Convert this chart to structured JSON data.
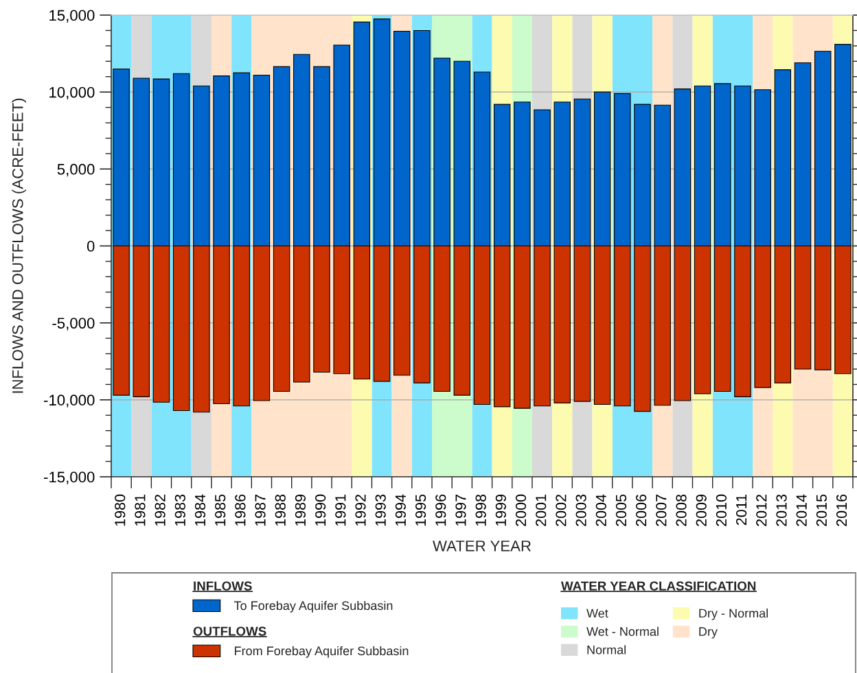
{
  "chart_data": {
    "type": "bar",
    "xlabel": "WATER YEAR",
    "ylabel": "INFLOWS AND OUTFLOWS (ACRE-FEET)",
    "categories": [
      "1980",
      "1981",
      "1982",
      "1983",
      "1984",
      "1985",
      "1986",
      "1987",
      "1988",
      "1989",
      "1990",
      "1991",
      "1992",
      "1993",
      "1994",
      "1995",
      "1996",
      "1997",
      "1998",
      "1999",
      "2000",
      "2001",
      "2002",
      "2003",
      "2004",
      "2005",
      "2006",
      "2007",
      "2008",
      "2009",
      "2010",
      "2011",
      "2012",
      "2013",
      "2014",
      "2015",
      "2016"
    ],
    "series": [
      {
        "name": "To Forebay Aquifer Subbasin",
        "color": "#0066cc",
        "values": [
          11500,
          10900,
          10850,
          11200,
          10400,
          11050,
          11250,
          11100,
          11650,
          12450,
          11650,
          13050,
          14550,
          14750,
          13950,
          14000,
          12200,
          12000,
          11300,
          9200,
          9350,
          8850,
          9350,
          9550,
          10000,
          9900,
          9200,
          9150,
          10200,
          10400,
          10550,
          10400,
          10150,
          11450,
          11900,
          12650,
          13100
        ]
      },
      {
        "name": "From Forebay Aquifer Subbasin",
        "color": "#cc3300",
        "values": [
          -9700,
          -9800,
          -10150,
          -10700,
          -10800,
          -10250,
          -10400,
          -10050,
          -9450,
          -8850,
          -8200,
          -8300,
          -8650,
          -8800,
          -8400,
          -8900,
          -9450,
          -9700,
          -10300,
          -10450,
          -10550,
          -10400,
          -10200,
          -10100,
          -10300,
          -10400,
          -10750,
          -10350,
          -10050,
          -9600,
          -9450,
          -9800,
          -9200,
          -8900,
          -8000,
          -8050,
          -8300
        ]
      }
    ],
    "stacked": true,
    "ylim": [
      -15000,
      15000
    ],
    "yticks": [
      {
        "value": -15000,
        "label": "-15,000"
      },
      {
        "value": -10000,
        "label": "-10,000"
      },
      {
        "value": -5000,
        "label": "-5,000"
      },
      0,
      {
        "value": 5000,
        "label": "5,000"
      },
      {
        "value": 10000,
        "label": "10,000"
      },
      {
        "value": 15000,
        "label": "15,000"
      }
    ],
    "grid": "y",
    "legend": "bottom",
    "legend_title": "WATER YEAR CLASSIFICATION",
    "annotations": [
      "INFLOWS",
      "OUTFLOWS"
    ],
    "bands": [
      {
        "axis": "x",
        "from": "1980",
        "to": "1980",
        "label": "Wet",
        "color": "#80e4fd"
      },
      {
        "axis": "x",
        "from": "1982",
        "to": "1983",
        "color": "#80e4fd"
      },
      {
        "axis": "x",
        "from": "1986",
        "to": "1986",
        "color": "#80e4fd"
      },
      {
        "axis": "x",
        "from": "1993",
        "to": "1993",
        "color": "#80e4fd"
      },
      {
        "axis": "x",
        "from": "1995",
        "to": "1995",
        "color": "#80e4fd"
      },
      {
        "axis": "x",
        "from": "1998",
        "to": "1998",
        "color": "#80e4fd"
      },
      {
        "axis": "x",
        "from": "2005",
        "to": "2006",
        "color": "#80e4fd"
      },
      {
        "axis": "x",
        "from": "2010",
        "to": "2011",
        "color": "#80e4fd"
      },
      {
        "axis": "x",
        "from": "1996",
        "to": "1997",
        "label": "Wet - Normal",
        "color": "#ccfccc"
      },
      {
        "axis": "x",
        "from": "2000",
        "to": "2000",
        "color": "#ccfccc"
      },
      {
        "axis": "x",
        "from": "1981",
        "to": "1981",
        "label": "Normal",
        "color": "#d9d9d9"
      },
      {
        "axis": "x",
        "from": "1984",
        "to": "1984",
        "color": "#d9d9d9"
      },
      {
        "axis": "x",
        "from": "2001",
        "to": "2001",
        "color": "#d9d9d9"
      },
      {
        "axis": "x",
        "from": "2003",
        "to": "2003",
        "color": "#d9d9d9"
      },
      {
        "axis": "x",
        "from": "2008",
        "to": "2008",
        "color": "#d9d9d9"
      },
      {
        "axis": "x",
        "from": "1992",
        "to": "1992",
        "label": "Dry - Normal",
        "color": "#fdfbb0"
      },
      {
        "axis": "x",
        "from": "1999",
        "to": "1999",
        "color": "#fdfbb0"
      },
      {
        "axis": "x",
        "from": "2002",
        "to": "2002",
        "color": "#fdfbb0"
      },
      {
        "axis": "x",
        "from": "2004",
        "to": "2004",
        "color": "#fdfbb0"
      },
      {
        "axis": "x",
        "from": "2009",
        "to": "2009",
        "color": "#fdfbb0"
      },
      {
        "axis": "x",
        "from": "2013",
        "to": "2013",
        "color": "#fdfbb0"
      },
      {
        "axis": "x",
        "from": "2016",
        "to": "2016",
        "color": "#fdfbb0"
      },
      {
        "axis": "x",
        "from": "1985",
        "to": "1985",
        "label": "Dry",
        "color": "#ffe4cb"
      },
      {
        "axis": "x",
        "from": "1987",
        "to": "1991",
        "color": "#ffe4cb"
      },
      {
        "axis": "x",
        "from": "1994",
        "to": "1994",
        "color": "#ffe4cb"
      },
      {
        "axis": "x",
        "from": "2007",
        "to": "2007",
        "color": "#ffe4cb"
      },
      {
        "axis": "x",
        "from": "2012",
        "to": "2012",
        "color": "#ffe4cb"
      },
      {
        "axis": "x",
        "from": "2014",
        "to": "2015",
        "color": "#ffe4cb"
      }
    ]
  }
}
